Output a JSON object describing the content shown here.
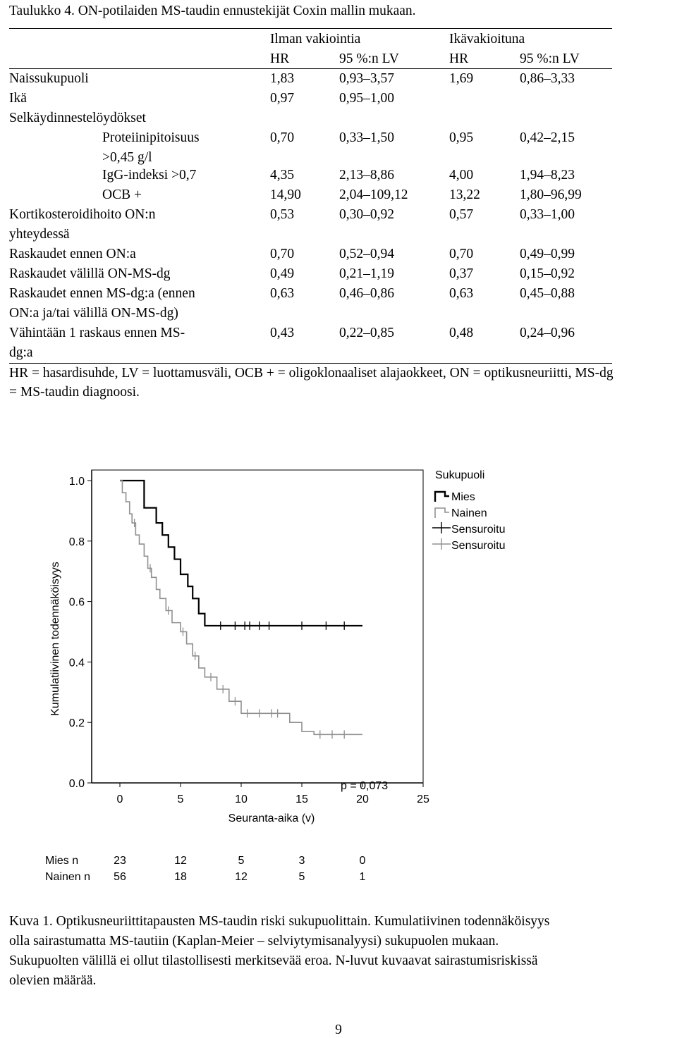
{
  "table": {
    "title": "Taulukko 4. ON-potilaiden MS-taudin ennustekijät Coxin mallin mukaan.",
    "group_unadjusted": "Ilman vakiointia",
    "group_adjusted": "Ikävakioituna",
    "col_hr": "HR",
    "col_ci": "95 %:n LV",
    "rows": [
      {
        "label": [
          "Naissukupuoli"
        ],
        "indent": false,
        "hr1": "1,83",
        "ci1": "0,93–3,57",
        "hr2": "1,69",
        "ci2": "0,86–3,33"
      },
      {
        "label": [
          "Ikä"
        ],
        "indent": false,
        "hr1": "0,97",
        "ci1": "0,95–1,00",
        "hr2": "",
        "ci2": ""
      },
      {
        "label": [
          "Selkäydinnestelöydökset"
        ],
        "indent": false,
        "hr1": "",
        "ci1": "",
        "hr2": "",
        "ci2": ""
      },
      {
        "label": [
          "Proteiinipitoisuus",
          ">0,45 g/l"
        ],
        "indent": true,
        "hr1": "0,70",
        "ci1": "0,33–1,50",
        "hr2": "0,95",
        "ci2": "0,42–2,15"
      },
      {
        "label": [
          "IgG-indeksi >0,7"
        ],
        "indent": true,
        "hr1": "4,35",
        "ci1": "2,13–8,86",
        "hr2": "4,00",
        "ci2": "1,94–8,23"
      },
      {
        "label": [
          "OCB +"
        ],
        "indent": true,
        "hr1": "14,90",
        "ci1": "2,04–109,12",
        "hr2": "13,22",
        "ci2": "1,80–96,99"
      },
      {
        "label": [
          "Kortikosteroidihoito ON:n",
          "yhteydessä"
        ],
        "indent": false,
        "hr1": "0,53",
        "ci1": "0,30–0,92",
        "hr2": "0,57",
        "ci2": "0,33–1,00"
      },
      {
        "label": [
          "Raskaudet ennen ON:a"
        ],
        "indent": false,
        "hr1": "0,70",
        "ci1": "0,52–0,94",
        "hr2": "0,70",
        "ci2": "0,49–0,99"
      },
      {
        "label": [
          "Raskaudet välillä ON-MS-dg"
        ],
        "indent": false,
        "hr1": "0,49",
        "ci1": "0,21–1,19",
        "hr2": "0,37",
        "ci2": "0,15–0,92"
      },
      {
        "label": [
          "Raskaudet ennen MS-dg:a (ennen",
          "ON:a ja/tai välillä ON-MS-dg)"
        ],
        "indent": false,
        "hr1": "0,63",
        "ci1": "0,46–0,86",
        "hr2": "0,63",
        "ci2": "0,45–0,88"
      },
      {
        "label": [
          "Vähintään 1 raskaus ennen MS-",
          "dg:a"
        ],
        "indent": false,
        "hr1": "0,43",
        "ci1": "0,22–0,85",
        "hr2": "0,48",
        "ci2": "0,24–0,96"
      }
    ],
    "footnote": "HR = hasardisuhde, LV = luottamusväli, OCB + = oligoklonaaliset alajaokkeet, ON = optikusneuriitti, MS-dg = MS-taudin diagnoosi."
  },
  "chart_data": {
    "type": "line",
    "step": true,
    "xlabel": "Seuranta-aika (v)",
    "ylabel": "Kumulatiivinen todennäköisyys",
    "xlim": [
      0,
      25
    ],
    "ylim": [
      0,
      1
    ],
    "x_ticks": [
      "0",
      "5",
      "10",
      "15",
      "20",
      "25"
    ],
    "y_ticks": [
      "0.0",
      "0.2",
      "0.4",
      "0.6",
      "0.8",
      "1.0"
    ],
    "legend_title": "Sukupuoli",
    "legend_position": "right",
    "annotation": "p = 0,073",
    "series": [
      {
        "name": "Mies",
        "color": "#000000",
        "steps": [
          [
            0,
            1.0
          ],
          [
            2,
            0.91
          ],
          [
            3,
            0.86
          ],
          [
            3.5,
            0.82
          ],
          [
            4,
            0.78
          ],
          [
            4.5,
            0.74
          ],
          [
            5,
            0.69
          ],
          [
            5.6,
            0.65
          ],
          [
            6,
            0.61
          ],
          [
            6.5,
            0.56
          ],
          [
            7,
            0.52
          ],
          [
            20,
            0.52
          ]
        ],
        "censored": [
          8.3,
          9.5,
          10.3,
          10.7,
          11.5,
          12.3,
          15.0,
          17.0,
          18.5
        ]
      },
      {
        "name": "Nainen",
        "color": "#909090",
        "steps": [
          [
            0,
            1.0
          ],
          [
            0.2,
            0.96
          ],
          [
            0.5,
            0.93
          ],
          [
            0.8,
            0.89
          ],
          [
            1.0,
            0.86
          ],
          [
            1.3,
            0.82
          ],
          [
            1.6,
            0.79
          ],
          [
            2.0,
            0.75
          ],
          [
            2.3,
            0.71
          ],
          [
            2.6,
            0.68
          ],
          [
            3.0,
            0.64
          ],
          [
            3.3,
            0.61
          ],
          [
            3.8,
            0.57
          ],
          [
            4.3,
            0.53
          ],
          [
            5.0,
            0.5
          ],
          [
            5.5,
            0.46
          ],
          [
            6.0,
            0.42
          ],
          [
            6.5,
            0.38
          ],
          [
            7.0,
            0.35
          ],
          [
            8.0,
            0.31
          ],
          [
            9.0,
            0.27
          ],
          [
            10.0,
            0.23
          ],
          [
            14.0,
            0.2
          ],
          [
            15.0,
            0.17
          ],
          [
            16.0,
            0.16
          ],
          [
            20,
            0.16
          ]
        ],
        "censored": [
          1.2,
          2.5,
          4.0,
          5.2,
          6.2,
          7.5,
          8.5,
          9.5,
          10.5,
          11.5,
          12.5,
          13.0,
          16.5,
          17.5,
          18.5
        ]
      }
    ],
    "legend_entries": [
      {
        "label": "Mies",
        "kind": "line",
        "color": "#000000"
      },
      {
        "label": "Nainen",
        "kind": "line",
        "color": "#909090"
      },
      {
        "label": "Sensuroitu",
        "kind": "censor",
        "color": "#000000"
      },
      {
        "label": "Sensuroitu",
        "kind": "censor",
        "color": "#909090"
      }
    ],
    "risk_table": {
      "rows": [
        {
          "label": "Mies n",
          "values": [
            "23",
            "12",
            "5",
            "3",
            "0"
          ]
        },
        {
          "label": "Nainen n",
          "values": [
            "56",
            "18",
            "12",
            "5",
            "1"
          ]
        }
      ],
      "at_x": [
        0,
        5,
        10,
        15,
        20
      ]
    }
  },
  "caption": {
    "lines": [
      "Kuva 1. Optikusneuriittitapausten MS-taudin riski sukupuolittain. Kumulatiivinen todennäköisyys",
      "olla sairastumatta MS-tautiin (Kaplan-Meier – selviytymisanalyysi) sukupuolen mukaan.",
      "Sukupuolten välillä ei ollut tilastollisesti merkitsevää eroa.  N-luvut kuvaavat sairastumisriskissä",
      "olevien määrää."
    ]
  },
  "page_number": "9"
}
